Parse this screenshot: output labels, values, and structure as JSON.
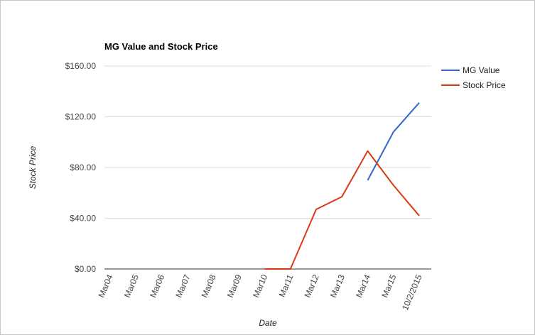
{
  "chart_data": {
    "type": "line",
    "title": "MG Value and Stock Price",
    "xlabel": "Date",
    "ylabel": "Stock Price",
    "categories": [
      "Mar04",
      "Mar05",
      "Mar06",
      "Mar07",
      "Mar08",
      "Mar09",
      "Mar10",
      "Mar11",
      "Mar12",
      "Mar13",
      "Mar14",
      "Mar15",
      "10/2/2015"
    ],
    "y_ticks": [
      "$0.00",
      "$40.00",
      "$80.00",
      "$120.00",
      "$160.00"
    ],
    "ylim": [
      0,
      160
    ],
    "grid": true,
    "legend_position": "right",
    "series": [
      {
        "name": "MG Value",
        "color": "#3366cc",
        "values": [
          null,
          null,
          null,
          null,
          null,
          null,
          null,
          null,
          null,
          null,
          70,
          108,
          131
        ]
      },
      {
        "name": "Stock Price",
        "color": "#dc3912",
        "values": [
          null,
          null,
          null,
          null,
          null,
          null,
          0,
          0,
          47,
          57,
          93,
          66,
          42
        ]
      }
    ]
  }
}
